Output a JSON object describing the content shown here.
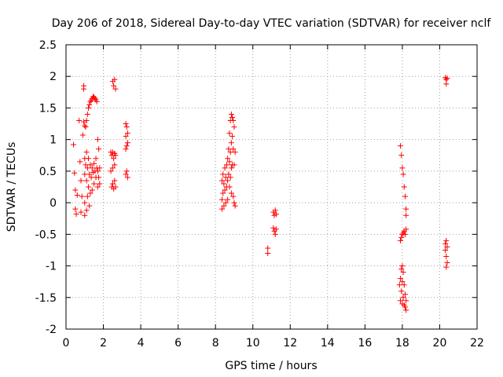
{
  "chart_data": {
    "type": "scatter",
    "title": "Day 206 of 2018, Sidereal Day-to-day VTEC variation (SDTVAR) for receiver nclf",
    "xlabel": "GPS time / hours",
    "ylabel": "SDTVAR / TECUs",
    "xlim": [
      0,
      22
    ],
    "ylim": [
      -2,
      2.5
    ],
    "xticks": [
      0,
      2,
      4,
      6,
      8,
      10,
      12,
      14,
      16,
      18,
      20,
      22
    ],
    "yticks": [
      -2,
      -1.5,
      -1,
      -0.5,
      0,
      0.5,
      1,
      1.5,
      2,
      2.5
    ],
    "xtick_labels": [
      "0",
      "2",
      "4",
      "6",
      "8",
      "10",
      "12",
      "14",
      "16",
      "18",
      "20",
      "22"
    ],
    "ytick_labels": [
      "-2",
      "-1.5",
      "-1",
      "-0.5",
      "0",
      "0.5",
      "1",
      "1.5",
      "2",
      "2.5"
    ],
    "grid": true,
    "marker": "plus",
    "marker_color": "#ff0000",
    "series": [
      {
        "name": "SDTVAR",
        "points": [
          [
            0.4,
            0.92
          ],
          [
            0.45,
            0.47
          ],
          [
            0.5,
            0.2
          ],
          [
            0.5,
            -0.1
          ],
          [
            0.55,
            -0.18
          ],
          [
            0.6,
            0.12
          ],
          [
            0.7,
            1.3
          ],
          [
            0.75,
            0.65
          ],
          [
            0.8,
            0.35
          ],
          [
            0.8,
            -0.15
          ],
          [
            0.85,
            0.1
          ],
          [
            0.9,
            1.07
          ],
          [
            0.95,
            1.85
          ],
          [
            0.95,
            1.8
          ],
          [
            0.95,
            1.28
          ],
          [
            1.0,
            1.22
          ],
          [
            1.0,
            0.7
          ],
          [
            1.0,
            0.45
          ],
          [
            1.0,
            0.0
          ],
          [
            1.0,
            -0.2
          ],
          [
            1.05,
            1.2
          ],
          [
            1.05,
            0.6
          ],
          [
            1.1,
            1.3
          ],
          [
            1.1,
            0.8
          ],
          [
            1.1,
            0.35
          ],
          [
            1.1,
            -0.12
          ],
          [
            1.15,
            1.4
          ],
          [
            1.15,
            0.55
          ],
          [
            1.15,
            0.1
          ],
          [
            1.2,
            1.5
          ],
          [
            1.2,
            0.7
          ],
          [
            1.2,
            0.25
          ],
          [
            1.25,
            1.55
          ],
          [
            1.25,
            0.45
          ],
          [
            1.25,
            -0.05
          ],
          [
            1.3,
            1.6
          ],
          [
            1.3,
            0.6
          ],
          [
            1.3,
            0.15
          ],
          [
            1.35,
            1.62
          ],
          [
            1.35,
            0.4
          ],
          [
            1.4,
            1.65
          ],
          [
            1.4,
            0.55
          ],
          [
            1.4,
            0.2
          ],
          [
            1.45,
            1.68
          ],
          [
            1.45,
            0.48
          ],
          [
            1.5,
            1.67
          ],
          [
            1.5,
            0.62
          ],
          [
            1.5,
            0.3
          ],
          [
            1.55,
            1.65
          ],
          [
            1.55,
            0.5
          ],
          [
            1.6,
            1.63
          ],
          [
            1.6,
            0.7
          ],
          [
            1.6,
            0.4
          ],
          [
            1.65,
            1.6
          ],
          [
            1.65,
            0.55
          ],
          [
            1.7,
            1.0
          ],
          [
            1.7,
            0.5
          ],
          [
            1.7,
            0.25
          ],
          [
            1.75,
            0.85
          ],
          [
            1.75,
            0.4
          ],
          [
            1.8,
            0.55
          ],
          [
            1.8,
            0.3
          ],
          [
            2.4,
            0.8
          ],
          [
            2.4,
            0.5
          ],
          [
            2.45,
            0.75
          ],
          [
            2.45,
            0.25
          ],
          [
            2.5,
            1.92
          ],
          [
            2.5,
            0.8
          ],
          [
            2.5,
            0.55
          ],
          [
            2.5,
            0.3
          ],
          [
            2.55,
            1.85
          ],
          [
            2.55,
            0.7
          ],
          [
            2.55,
            0.22
          ],
          [
            2.6,
            1.95
          ],
          [
            2.6,
            0.78
          ],
          [
            2.6,
            0.6
          ],
          [
            2.6,
            0.35
          ],
          [
            2.65,
            1.8
          ],
          [
            2.65,
            0.75
          ],
          [
            2.65,
            0.25
          ],
          [
            3.2,
            1.25
          ],
          [
            3.2,
            1.05
          ],
          [
            3.2,
            0.85
          ],
          [
            3.2,
            0.45
          ],
          [
            3.25,
            1.2
          ],
          [
            3.25,
            0.9
          ],
          [
            3.25,
            0.5
          ],
          [
            3.3,
            1.1
          ],
          [
            3.3,
            0.95
          ],
          [
            3.3,
            0.4
          ],
          [
            8.35,
            0.35
          ],
          [
            8.35,
            0.05
          ],
          [
            8.35,
            -0.1
          ],
          [
            8.4,
            0.45
          ],
          [
            8.4,
            0.15
          ],
          [
            8.45,
            0.3
          ],
          [
            8.45,
            -0.05
          ],
          [
            8.5,
            0.55
          ],
          [
            8.5,
            0.2
          ],
          [
            8.55,
            0.4
          ],
          [
            8.55,
            0.0
          ],
          [
            8.6,
            0.6
          ],
          [
            8.6,
            0.25
          ],
          [
            8.65,
            0.7
          ],
          [
            8.65,
            0.35
          ],
          [
            8.65,
            0.05
          ],
          [
            8.7,
            0.85
          ],
          [
            8.7,
            0.45
          ],
          [
            8.75,
            1.1
          ],
          [
            8.75,
            0.65
          ],
          [
            8.75,
            0.25
          ],
          [
            8.8,
            1.3
          ],
          [
            8.8,
            0.8
          ],
          [
            8.8,
            0.4
          ],
          [
            8.85,
            1.4
          ],
          [
            8.85,
            0.95
          ],
          [
            8.85,
            0.55
          ],
          [
            8.85,
            0.15
          ],
          [
            8.9,
            1.35
          ],
          [
            8.9,
            1.05
          ],
          [
            8.9,
            0.6
          ],
          [
            8.95,
            1.3
          ],
          [
            8.95,
            0.85
          ],
          [
            8.95,
            0.1
          ],
          [
            9.0,
            1.2
          ],
          [
            9.0,
            0.6
          ],
          [
            9.0,
            0.0
          ],
          [
            9.05,
            0.8
          ],
          [
            9.05,
            -0.05
          ],
          [
            10.8,
            -0.72
          ],
          [
            10.8,
            -0.8
          ],
          [
            11.1,
            -0.15
          ],
          [
            11.1,
            -0.4
          ],
          [
            11.15,
            -0.2
          ],
          [
            11.15,
            -0.45
          ],
          [
            11.2,
            -0.12
          ],
          [
            11.2,
            -0.5
          ],
          [
            11.25,
            -0.18
          ],
          [
            11.25,
            -0.42
          ],
          [
            17.9,
            0.9
          ],
          [
            17.95,
            0.75
          ],
          [
            18.0,
            0.55
          ],
          [
            18.05,
            0.45
          ],
          [
            18.1,
            0.25
          ],
          [
            18.15,
            0.1
          ],
          [
            18.2,
            -0.1
          ],
          [
            18.2,
            -0.2
          ],
          [
            17.9,
            -0.6
          ],
          [
            17.95,
            -0.55
          ],
          [
            18.0,
            -0.5
          ],
          [
            18.05,
            -0.48
          ],
          [
            18.1,
            -0.45
          ],
          [
            18.15,
            -0.5
          ],
          [
            18.2,
            -0.42
          ],
          [
            17.85,
            -1.3
          ],
          [
            17.9,
            -1.2
          ],
          [
            17.9,
            -1.55
          ],
          [
            17.95,
            -1.05
          ],
          [
            17.95,
            -1.4
          ],
          [
            18.0,
            -1.0
          ],
          [
            18.0,
            -1.25
          ],
          [
            18.0,
            -1.6
          ],
          [
            18.05,
            -1.1
          ],
          [
            18.05,
            -1.5
          ],
          [
            18.1,
            -1.3
          ],
          [
            18.1,
            -1.62
          ],
          [
            18.15,
            -1.45
          ],
          [
            18.15,
            -1.65
          ],
          [
            18.2,
            -1.55
          ],
          [
            18.2,
            -1.7
          ],
          [
            20.3,
            1.98
          ],
          [
            20.35,
            1.95
          ],
          [
            20.35,
            1.88
          ],
          [
            20.4,
            1.97
          ],
          [
            20.3,
            -0.65
          ],
          [
            20.3,
            -0.75
          ],
          [
            20.35,
            -0.6
          ],
          [
            20.35,
            -0.85
          ],
          [
            20.4,
            -0.7
          ],
          [
            20.4,
            -0.95
          ],
          [
            20.35,
            -1.02
          ]
        ]
      }
    ]
  }
}
